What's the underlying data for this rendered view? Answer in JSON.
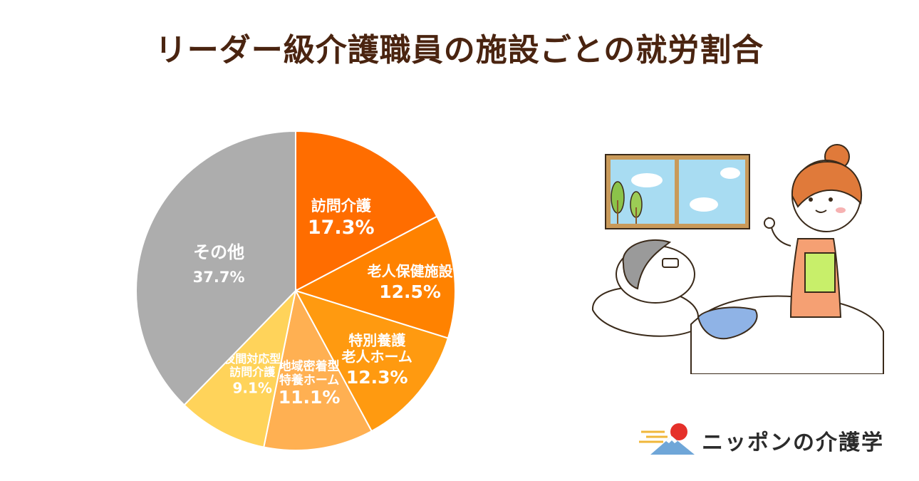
{
  "title": "リーダー級介護職員の施設ごとの就労割合",
  "chart_data": {
    "type": "pie",
    "start_angle_deg": 0,
    "direction": "clockwise",
    "slices": [
      {
        "label": [
          "訪問介護"
        ],
        "value": 17.3,
        "value_label": "17.3%",
        "color": "#ff6d00"
      },
      {
        "label": [
          "老人保健施設"
        ],
        "value": 12.5,
        "value_label": "12.5%",
        "color": "#ff8200"
      },
      {
        "label": [
          "特別養護",
          "老人ホーム"
        ],
        "value": 12.3,
        "value_label": "12.3%",
        "color": "#ff9a10"
      },
      {
        "label": [
          "地域密着型",
          "特養ホーム"
        ],
        "value": 11.1,
        "value_label": "11.1%",
        "color": "#ffb052"
      },
      {
        "label": [
          "夜間対応型",
          "訪問介護"
        ],
        "value": 9.1,
        "value_label": "9.1%",
        "color": "#ffd35a"
      },
      {
        "label": [
          "その他"
        ],
        "value": 37.7,
        "value_label": "37.7%",
        "color": "#adadad"
      }
    ]
  },
  "logo": {
    "text": "ニッポンの介護学"
  },
  "illustration_icon": "caregiver-with-bedridden-patient-illustration",
  "logo_icon": "rising-sun-mount-fuji-icon"
}
